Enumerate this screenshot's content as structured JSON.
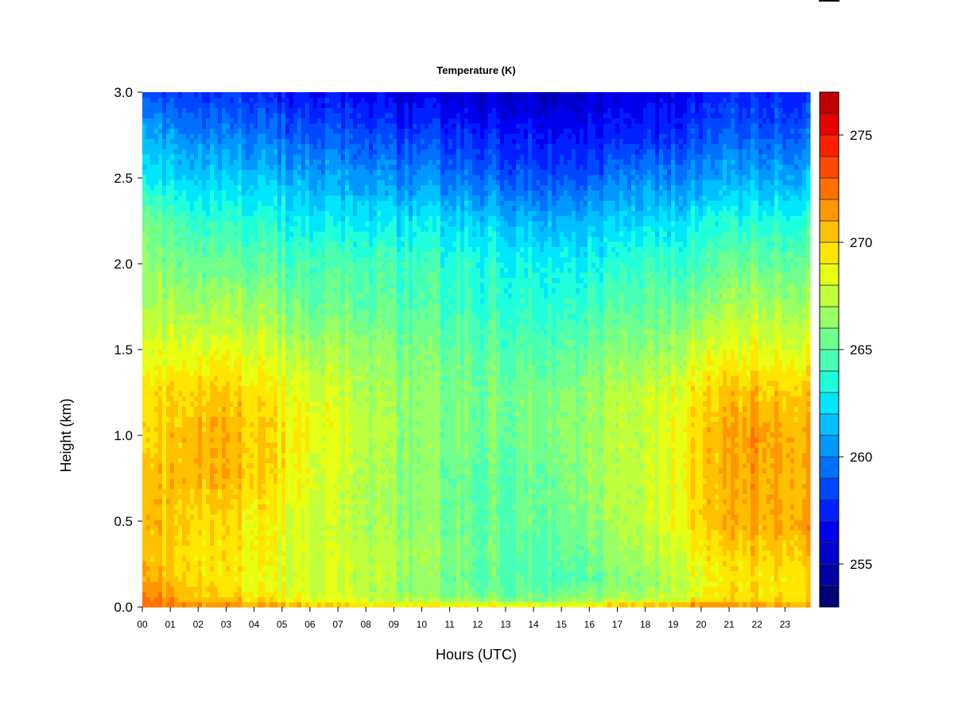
{
  "chart_data": {
    "type": "heatmap",
    "title": "Temperature (K)",
    "xlabel": "Hours (UTC)",
    "ylabel": "Height (km)",
    "x_ticks": [
      "00",
      "01",
      "02",
      "03",
      "04",
      "05",
      "06",
      "07",
      "08",
      "09",
      "10",
      "11",
      "12",
      "13",
      "14",
      "15",
      "16",
      "17",
      "18",
      "19",
      "20",
      "21",
      "22",
      "23"
    ],
    "y_ticks": [
      "0.0",
      "0.5",
      "1.0",
      "1.5",
      "2.0",
      "2.5",
      "3.0"
    ],
    "xlim": [
      0,
      23.9
    ],
    "ylim": [
      0,
      3.0
    ],
    "colorbar": {
      "label": "",
      "range": [
        253,
        277
      ],
      "levels": 24,
      "ticks": [
        "255",
        "260",
        "265",
        "270",
        "275"
      ],
      "tick_values": [
        255,
        260,
        265,
        270,
        275
      ],
      "colors": [
        "#00007a",
        "#0000a6",
        "#0000cc",
        "#0000f0",
        "#0020ff",
        "#0048ff",
        "#0070ff",
        "#0098ff",
        "#00c0ff",
        "#00e6ff",
        "#20ffdc",
        "#48ffb4",
        "#70ff8c",
        "#98ff64",
        "#c0ff3c",
        "#e6ff14",
        "#ffe600",
        "#ffc000",
        "#ff9800",
        "#ff7000",
        "#ff4800",
        "#ff2000",
        "#e60000",
        "#c00000",
        "#8a0000"
      ]
    },
    "heights_km": [
      0.0,
      0.05,
      0.15,
      0.3,
      0.5,
      0.75,
      1.0,
      1.25,
      1.5,
      1.75,
      2.0,
      2.25,
      2.5,
      2.75,
      3.0
    ],
    "hours": [
      0,
      2,
      4,
      6,
      8,
      10,
      12,
      14,
      16,
      18,
      20,
      22,
      24
    ],
    "values_K": [
      [
        272.5,
        272.0,
        271.0,
        270.5,
        270.5,
        270.0,
        269.5,
        269.0,
        268.0,
        267.0,
        266.0,
        265.5,
        262.5,
        261.0,
        258.5
      ],
      [
        272.0,
        270.5,
        270.0,
        269.5,
        270.0,
        271.0,
        271.0,
        270.5,
        268.5,
        267.0,
        265.5,
        264.0,
        262.0,
        260.0,
        258.0
      ],
      [
        271.5,
        269.5,
        268.5,
        269.0,
        269.0,
        270.0,
        270.0,
        269.5,
        268.0,
        266.5,
        265.0,
        263.5,
        261.5,
        259.5,
        257.5
      ],
      [
        271.0,
        268.5,
        268.0,
        268.0,
        268.0,
        268.5,
        269.0,
        268.5,
        267.0,
        265.5,
        264.5,
        263.0,
        261.0,
        259.0,
        257.0
      ],
      [
        270.5,
        267.5,
        267.5,
        267.5,
        267.0,
        267.0,
        267.5,
        267.0,
        266.5,
        265.0,
        264.5,
        262.5,
        260.5,
        258.5,
        256.5
      ],
      [
        270.0,
        266.5,
        266.0,
        266.5,
        266.0,
        266.0,
        266.0,
        266.0,
        265.5,
        264.5,
        264.0,
        262.5,
        260.0,
        258.0,
        256.0
      ],
      [
        270.0,
        266.0,
        265.0,
        265.5,
        265.0,
        265.0,
        265.5,
        265.5,
        265.0,
        264.0,
        263.5,
        262.0,
        259.5,
        257.5,
        255.5
      ],
      [
        270.0,
        266.0,
        265.0,
        265.0,
        265.5,
        265.5,
        266.0,
        266.0,
        265.0,
        264.0,
        263.5,
        261.5,
        259.0,
        257.5,
        255.5
      ],
      [
        270.0,
        266.5,
        265.0,
        265.5,
        266.0,
        266.5,
        266.5,
        266.5,
        265.5,
        264.0,
        263.0,
        261.5,
        259.0,
        257.0,
        255.5
      ],
      [
        271.0,
        267.0,
        266.0,
        267.0,
        267.5,
        267.5,
        267.5,
        267.5,
        266.0,
        265.0,
        264.0,
        262.0,
        260.0,
        257.5,
        256.0
      ],
      [
        272.5,
        269.0,
        268.5,
        269.0,
        270.0,
        270.0,
        270.0,
        269.5,
        268.0,
        266.0,
        264.5,
        263.0,
        260.5,
        258.5,
        257.0
      ],
      [
        272.0,
        269.5,
        269.5,
        270.0,
        271.0,
        271.0,
        271.5,
        270.5,
        268.5,
        267.0,
        265.5,
        263.5,
        261.0,
        259.0,
        257.5
      ],
      [
        272.0,
        270.0,
        270.0,
        270.5,
        271.5,
        271.0,
        271.0,
        270.5,
        268.5,
        267.0,
        265.5,
        264.0,
        261.5,
        259.5,
        258.0
      ]
    ]
  }
}
